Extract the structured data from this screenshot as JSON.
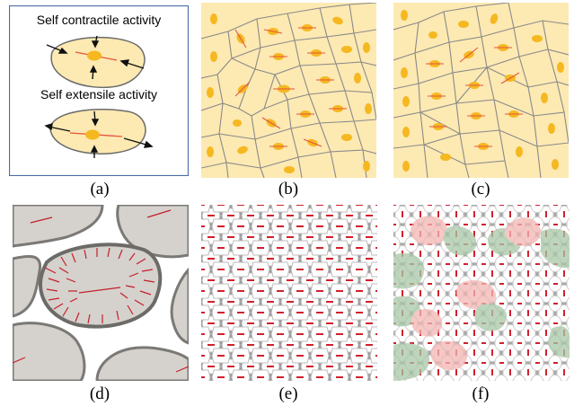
{
  "panel_a": {
    "contractile_label": "Self contractile activity",
    "extensile_label": "Self extensile activity",
    "caption": "(a)"
  },
  "panel_b": {
    "caption": "(b)"
  },
  "panel_c": {
    "caption": "(c)"
  },
  "panel_d": {
    "caption": "(d)"
  },
  "panel_e": {
    "caption": "(e)"
  },
  "panel_f": {
    "caption": "(f)"
  },
  "colors": {
    "cell_fill": "#fde9b2",
    "nucleus": "#f5b820",
    "axis_line": "#e5533d",
    "gray_cell": "#d5d2cd",
    "red_cell": "#f2b6b4",
    "green_cell": "#a9c7a7",
    "border": "#4a6ea8"
  }
}
